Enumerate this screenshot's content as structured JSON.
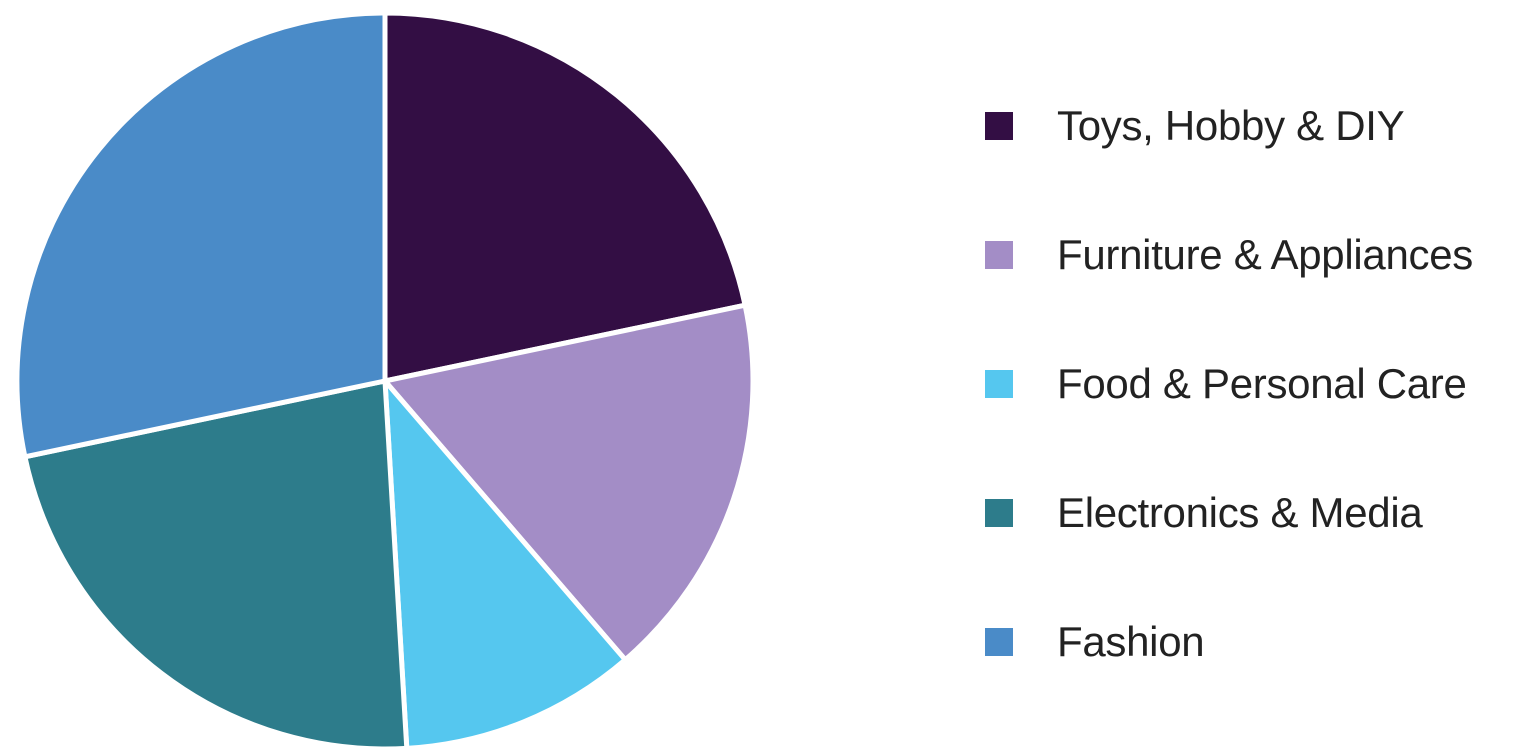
{
  "chart_data": {
    "type": "pie",
    "start_angle_deg": 0,
    "direction": "clockwise",
    "legend_position": "right",
    "slices": [
      {
        "label": "Toys, Hobby & DIY",
        "value": 23,
        "color": "#330E44"
      },
      {
        "label": "Furniture & Appliances",
        "value": 18,
        "color": "#A38DC6"
      },
      {
        "label": "Food & Personal Care",
        "value": 11,
        "color": "#55C7EF"
      },
      {
        "label": "Electronics & Media",
        "value": 24,
        "color": "#2D7C8B"
      },
      {
        "label": "Fashion",
        "value": 30,
        "color": "#4A8BC8"
      }
    ]
  }
}
